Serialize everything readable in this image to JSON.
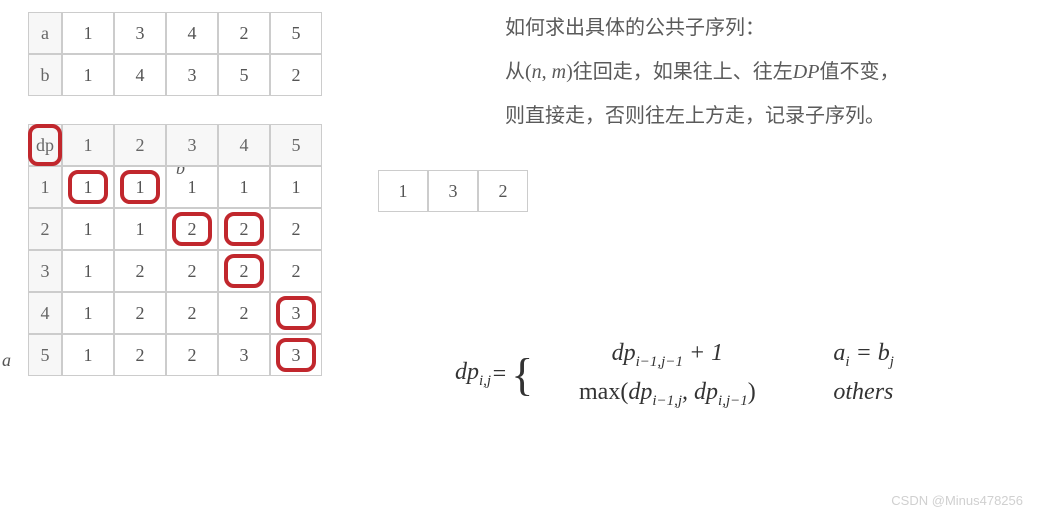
{
  "ab_table": {
    "rows": [
      {
        "label": "a",
        "cells": [
          "1",
          "3",
          "4",
          "2",
          "5"
        ]
      },
      {
        "label": "b",
        "cells": [
          "1",
          "4",
          "3",
          "5",
          "2"
        ]
      }
    ],
    "cell_bg": "#ffffff",
    "header_bg": "#f7f7f7",
    "border": "#cccccc",
    "text": "#555555"
  },
  "dp_table": {
    "corner": "dp",
    "col_headers": [
      "1",
      "2",
      "3",
      "4",
      "5"
    ],
    "row_headers": [
      "1",
      "2",
      "3",
      "4",
      "5"
    ],
    "grid": [
      [
        "1",
        "1",
        "1",
        "1",
        "1"
      ],
      [
        "1",
        "1",
        "2",
        "2",
        "2"
      ],
      [
        "1",
        "2",
        "2",
        "2",
        "2"
      ],
      [
        "1",
        "2",
        "2",
        "2",
        "3"
      ],
      [
        "1",
        "2",
        "2",
        "3",
        "3"
      ]
    ],
    "axis_a_label": "a",
    "axis_b_label": "b",
    "highlights": [
      {
        "r": -1,
        "c": -1
      },
      {
        "r": 0,
        "c": 0
      },
      {
        "r": 0,
        "c": 1
      },
      {
        "r": 1,
        "c": 2
      },
      {
        "r": 1,
        "c": 3
      },
      {
        "r": 2,
        "c": 3
      },
      {
        "r": 3,
        "c": 4
      },
      {
        "r": 4,
        "c": 4
      }
    ],
    "highlight_color": "#c1272d",
    "highlight_radius": 10,
    "highlight_border_w": 4
  },
  "result": {
    "cells": [
      "1",
      "3",
      "2"
    ]
  },
  "explain": {
    "line1": "如何求出具体的公共子序列：",
    "line2_pre": "从(",
    "line2_n": "n",
    "line2_comma": ", ",
    "line2_m": "m",
    "line2_post": ")往回走，如果往上、往左",
    "line2_dp": "DP",
    "line2_tail": "值不变，",
    "line3": "则直接走，否则往左上方走，记录子序列。",
    "text_color": "#5a5a5a",
    "font_size": 20
  },
  "formula": {
    "lhs": "dp",
    "lhs_sub": "i,j",
    "eq": " = ",
    "case1_expr": "dp",
    "case1_sub": "i−1,j−1",
    "case1_tail": " + 1",
    "case1_cond_a": "a",
    "case1_cond_ai": "i",
    "case1_cond_eq": " = ",
    "case1_cond_b": "b",
    "case1_cond_bj": "j",
    "case2_prefix": "max(",
    "case2_a": "dp",
    "case2_a_sub": "i−1,j",
    "case2_comma": ", ",
    "case2_b": "dp",
    "case2_b_sub": "i,j−1",
    "case2_suffix": ")",
    "case2_cond": "others",
    "font_size": 24,
    "color": "#333333"
  },
  "watermark": "CSDN @Minus478256",
  "colors": {
    "bg": "#ffffff"
  }
}
